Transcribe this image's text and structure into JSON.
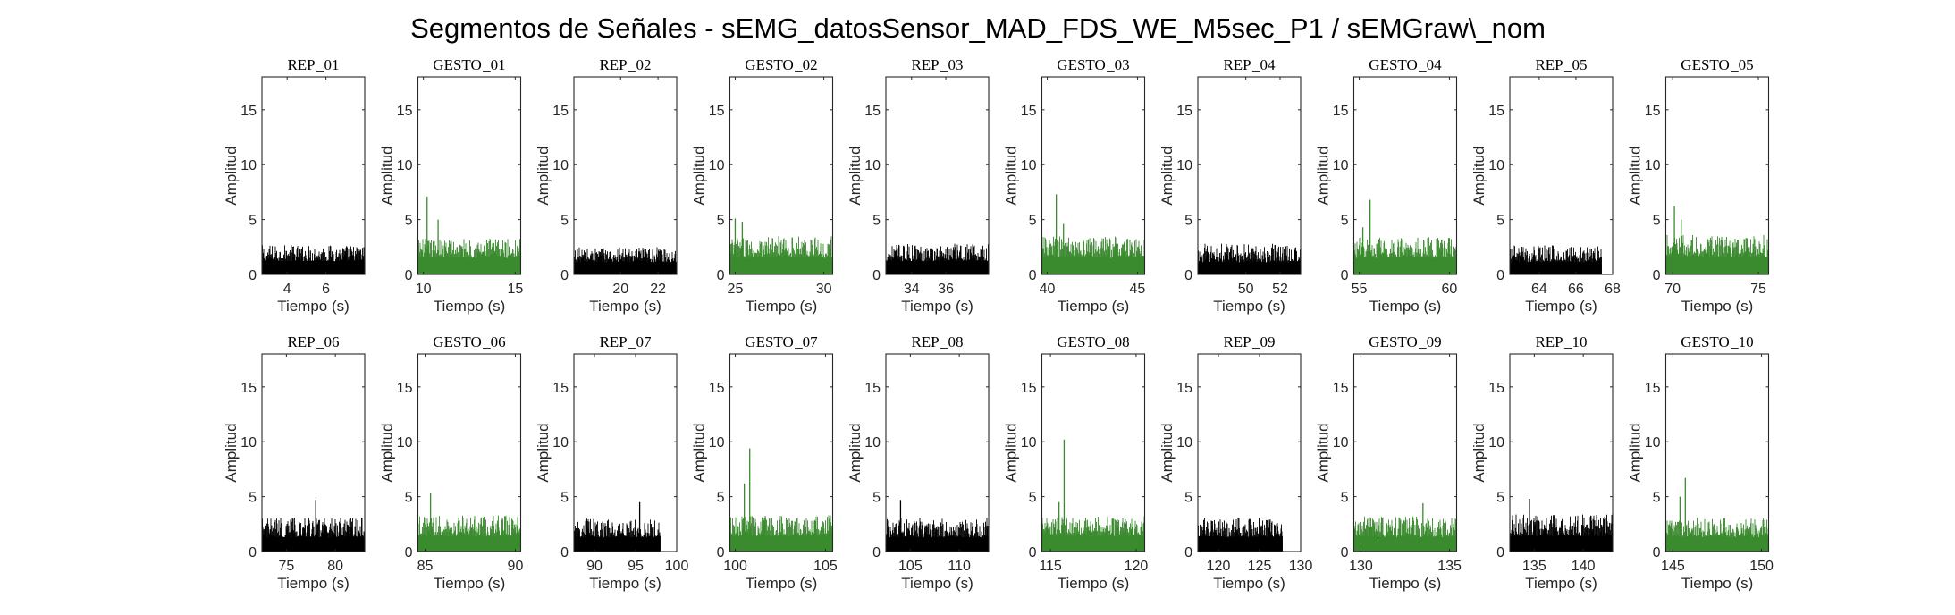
{
  "title": "Segmentos de Señales - sEMG_datosSensor_MAD_FDS_WE_M5sec_P1 / sEMGraw\\_nom",
  "colors": {
    "rep": "#000000",
    "gesto": "#3a8a2e",
    "axis": "#262626"
  },
  "chart_data": [
    {
      "type": "area",
      "title": "REP_01",
      "kind": "rep",
      "xlabel": "Tiempo (s)",
      "ylabel": "Amplitud",
      "xlim": [
        2.7,
        8.0
      ],
      "xticks": [
        4,
        6
      ],
      "ylim": [
        0,
        18
      ],
      "yticks": [
        0,
        5,
        10,
        15
      ],
      "data_x": [
        2.7,
        8.0
      ],
      "baseline": 1.2,
      "noise": 1.5,
      "spikes": [],
      "grid": false
    },
    {
      "type": "area",
      "title": "GESTO_01",
      "kind": "gesto",
      "xlabel": "Tiempo (s)",
      "ylabel": "Amplitud",
      "xlim": [
        9.7,
        15.3
      ],
      "xticks": [
        10,
        15
      ],
      "ylim": [
        0,
        18
      ],
      "yticks": [
        0,
        5,
        10,
        15
      ],
      "data_x": [
        9.7,
        15.3
      ],
      "baseline": 1.5,
      "noise": 1.8,
      "spikes": [
        [
          10.2,
          7.1
        ],
        [
          10.8,
          5.0
        ]
      ],
      "grid": false
    },
    {
      "type": "area",
      "title": "REP_02",
      "kind": "rep",
      "xlabel": "Tiempo (s)",
      "ylabel": "Amplitud",
      "xlim": [
        17.5,
        23.0
      ],
      "xticks": [
        20,
        22
      ],
      "ylim": [
        0,
        18
      ],
      "yticks": [
        0,
        5,
        10,
        15
      ],
      "data_x": [
        17.5,
        23.0
      ],
      "baseline": 1.1,
      "noise": 1.4,
      "spikes": [],
      "grid": false
    },
    {
      "type": "area",
      "title": "GESTO_02",
      "kind": "gesto",
      "xlabel": "Tiempo (s)",
      "ylabel": "Amplitud",
      "xlim": [
        24.7,
        30.5
      ],
      "xticks": [
        25,
        30
      ],
      "ylim": [
        0,
        18
      ],
      "yticks": [
        0,
        5,
        10,
        15
      ],
      "data_x": [
        24.7,
        30.5
      ],
      "baseline": 1.5,
      "noise": 2.0,
      "spikes": [
        [
          25.0,
          5.1
        ],
        [
          25.4,
          4.8
        ]
      ],
      "grid": false
    },
    {
      "type": "area",
      "title": "REP_03",
      "kind": "rep",
      "xlabel": "Tiempo (s)",
      "ylabel": "Amplitud",
      "xlim": [
        32.5,
        38.5
      ],
      "xticks": [
        34,
        36
      ],
      "ylim": [
        0,
        18
      ],
      "yticks": [
        0,
        5,
        10,
        15
      ],
      "data_x": [
        32.5,
        38.5
      ],
      "baseline": 1.2,
      "noise": 1.6,
      "spikes": [],
      "grid": false
    },
    {
      "type": "area",
      "title": "GESTO_03",
      "kind": "gesto",
      "xlabel": "Tiempo (s)",
      "ylabel": "Amplitud",
      "xlim": [
        39.7,
        45.4
      ],
      "xticks": [
        40,
        45
      ],
      "ylim": [
        0,
        18
      ],
      "yticks": [
        0,
        5,
        10,
        15
      ],
      "data_x": [
        39.7,
        45.4
      ],
      "baseline": 1.5,
      "noise": 2.0,
      "spikes": [
        [
          40.5,
          7.3
        ],
        [
          40.9,
          4.6
        ]
      ],
      "grid": false
    },
    {
      "type": "area",
      "title": "REP_04",
      "kind": "rep",
      "xlabel": "Tiempo (s)",
      "ylabel": "Amplitud",
      "xlim": [
        47.2,
        53.2
      ],
      "xticks": [
        50,
        52
      ],
      "ylim": [
        0,
        18
      ],
      "yticks": [
        0,
        5,
        10,
        15
      ],
      "data_x": [
        47.2,
        53.2
      ],
      "baseline": 1.1,
      "noise": 1.7,
      "spikes": [],
      "grid": false
    },
    {
      "type": "area",
      "title": "GESTO_04",
      "kind": "gesto",
      "xlabel": "Tiempo (s)",
      "ylabel": "Amplitud",
      "xlim": [
        54.7,
        60.4
      ],
      "xticks": [
        55,
        60
      ],
      "ylim": [
        0,
        18
      ],
      "yticks": [
        0,
        5,
        10,
        15
      ],
      "data_x": [
        54.7,
        60.4
      ],
      "baseline": 1.5,
      "noise": 1.9,
      "spikes": [
        [
          55.6,
          6.8
        ],
        [
          55.2,
          4.3
        ]
      ],
      "grid": false
    },
    {
      "type": "area",
      "title": "REP_05",
      "kind": "rep",
      "xlabel": "Tiempo (s)",
      "ylabel": "Amplitud",
      "xlim": [
        62.4,
        68.0
      ],
      "xticks": [
        64,
        66,
        68
      ],
      "ylim": [
        0,
        18
      ],
      "yticks": [
        0,
        5,
        10,
        15
      ],
      "data_x": [
        62.4,
        67.4
      ],
      "baseline": 1.1,
      "noise": 1.6,
      "spikes": [],
      "grid": false
    },
    {
      "type": "area",
      "title": "GESTO_05",
      "kind": "gesto",
      "xlabel": "Tiempo (s)",
      "ylabel": "Amplitud",
      "xlim": [
        69.6,
        75.6
      ],
      "xticks": [
        70,
        75
      ],
      "ylim": [
        0,
        18
      ],
      "yticks": [
        0,
        5,
        10,
        15
      ],
      "data_x": [
        69.6,
        75.6
      ],
      "baseline": 1.6,
      "noise": 2.0,
      "spikes": [
        [
          70.1,
          6.2
        ],
        [
          70.5,
          5.0
        ]
      ],
      "grid": false
    },
    {
      "type": "area",
      "title": "REP_06",
      "kind": "rep",
      "xlabel": "Tiempo (s)",
      "ylabel": "Amplitud",
      "xlim": [
        72.5,
        83.0
      ],
      "xticks": [
        75,
        80
      ],
      "ylim": [
        0,
        18
      ],
      "yticks": [
        0,
        5,
        10,
        15
      ],
      "data_x": [
        72.5,
        83.0
      ],
      "baseline": 1.3,
      "noise": 1.8,
      "spikes": [
        [
          78.0,
          4.7
        ]
      ],
      "grid": false
    },
    {
      "type": "area",
      "title": "GESTO_06",
      "kind": "gesto",
      "xlabel": "Tiempo (s)",
      "ylabel": "Amplitud",
      "xlim": [
        84.6,
        90.3
      ],
      "xticks": [
        85,
        90
      ],
      "ylim": [
        0,
        18
      ],
      "yticks": [
        0,
        5,
        10,
        15
      ],
      "data_x": [
        84.6,
        90.3
      ],
      "baseline": 1.4,
      "noise": 1.9,
      "spikes": [
        [
          85.3,
          5.3
        ]
      ],
      "grid": false
    },
    {
      "type": "area",
      "title": "REP_07",
      "kind": "rep",
      "xlabel": "Tiempo (s)",
      "ylabel": "Amplitud",
      "xlim": [
        87.5,
        100.0
      ],
      "xticks": [
        90,
        95,
        100
      ],
      "ylim": [
        0,
        18
      ],
      "yticks": [
        0,
        5,
        10,
        15
      ],
      "data_x": [
        87.5,
        98.0
      ],
      "baseline": 1.3,
      "noise": 1.7,
      "spikes": [
        [
          95.5,
          4.5
        ]
      ],
      "grid": false
    },
    {
      "type": "area",
      "title": "GESTO_07",
      "kind": "gesto",
      "xlabel": "Tiempo (s)",
      "ylabel": "Amplitud",
      "xlim": [
        99.7,
        105.4
      ],
      "xticks": [
        100,
        105
      ],
      "ylim": [
        0,
        18
      ],
      "yticks": [
        0,
        5,
        10,
        15
      ],
      "data_x": [
        99.7,
        105.4
      ],
      "baseline": 1.4,
      "noise": 1.9,
      "spikes": [
        [
          100.8,
          9.4
        ],
        [
          100.5,
          6.2
        ]
      ],
      "grid": false
    },
    {
      "type": "area",
      "title": "REP_08",
      "kind": "rep",
      "xlabel": "Tiempo (s)",
      "ylabel": "Amplitud",
      "xlim": [
        102.5,
        113.0
      ],
      "xticks": [
        105,
        110
      ],
      "ylim": [
        0,
        18
      ],
      "yticks": [
        0,
        5,
        10,
        15
      ],
      "data_x": [
        102.5,
        113.0
      ],
      "baseline": 1.3,
      "noise": 1.8,
      "spikes": [
        [
          104.0,
          4.7
        ]
      ],
      "grid": false
    },
    {
      "type": "area",
      "title": "GESTO_08",
      "kind": "gesto",
      "xlabel": "Tiempo (s)",
      "ylabel": "Amplitud",
      "xlim": [
        114.5,
        120.5
      ],
      "xticks": [
        115,
        120
      ],
      "ylim": [
        0,
        18
      ],
      "yticks": [
        0,
        5,
        10,
        15
      ],
      "data_x": [
        114.5,
        120.5
      ],
      "baseline": 1.4,
      "noise": 1.8,
      "spikes": [
        [
          115.8,
          10.2
        ],
        [
          115.5,
          4.5
        ]
      ],
      "grid": false
    },
    {
      "type": "area",
      "title": "REP_09",
      "kind": "rep",
      "xlabel": "Tiempo (s)",
      "ylabel": "Amplitud",
      "xlim": [
        117.5,
        130.0
      ],
      "xticks": [
        120,
        125,
        130
      ],
      "ylim": [
        0,
        18
      ],
      "yticks": [
        0,
        5,
        10,
        15
      ],
      "data_x": [
        117.5,
        127.8
      ],
      "baseline": 1.3,
      "noise": 1.8,
      "spikes": [],
      "grid": false
    },
    {
      "type": "area",
      "title": "GESTO_09",
      "kind": "gesto",
      "xlabel": "Tiempo (s)",
      "ylabel": "Amplitud",
      "xlim": [
        129.6,
        135.4
      ],
      "xticks": [
        130,
        135
      ],
      "ylim": [
        0,
        18
      ],
      "yticks": [
        0,
        5,
        10,
        15
      ],
      "data_x": [
        129.6,
        135.4
      ],
      "baseline": 1.3,
      "noise": 1.9,
      "spikes": [
        [
          133.5,
          4.4
        ]
      ],
      "grid": false
    },
    {
      "type": "area",
      "title": "REP_10",
      "kind": "rep",
      "xlabel": "Tiempo (s)",
      "ylabel": "Amplitud",
      "xlim": [
        132.5,
        143.0
      ],
      "xticks": [
        135,
        140
      ],
      "ylim": [
        0,
        18
      ],
      "yticks": [
        0,
        5,
        10,
        15
      ],
      "data_x": [
        132.5,
        143.0
      ],
      "baseline": 1.4,
      "noise": 2.0,
      "spikes": [
        [
          134.5,
          4.8
        ]
      ],
      "grid": false
    },
    {
      "type": "area",
      "title": "GESTO_10",
      "kind": "gesto",
      "xlabel": "Tiempo (s)",
      "ylabel": "Amplitud",
      "xlim": [
        144.6,
        150.4
      ],
      "xticks": [
        145,
        150
      ],
      "ylim": [
        0,
        18
      ],
      "yticks": [
        0,
        5,
        10,
        15
      ],
      "data_x": [
        144.6,
        150.4
      ],
      "baseline": 1.3,
      "noise": 1.8,
      "spikes": [
        [
          145.7,
          6.7
        ],
        [
          145.4,
          5.0
        ]
      ],
      "grid": false
    }
  ]
}
